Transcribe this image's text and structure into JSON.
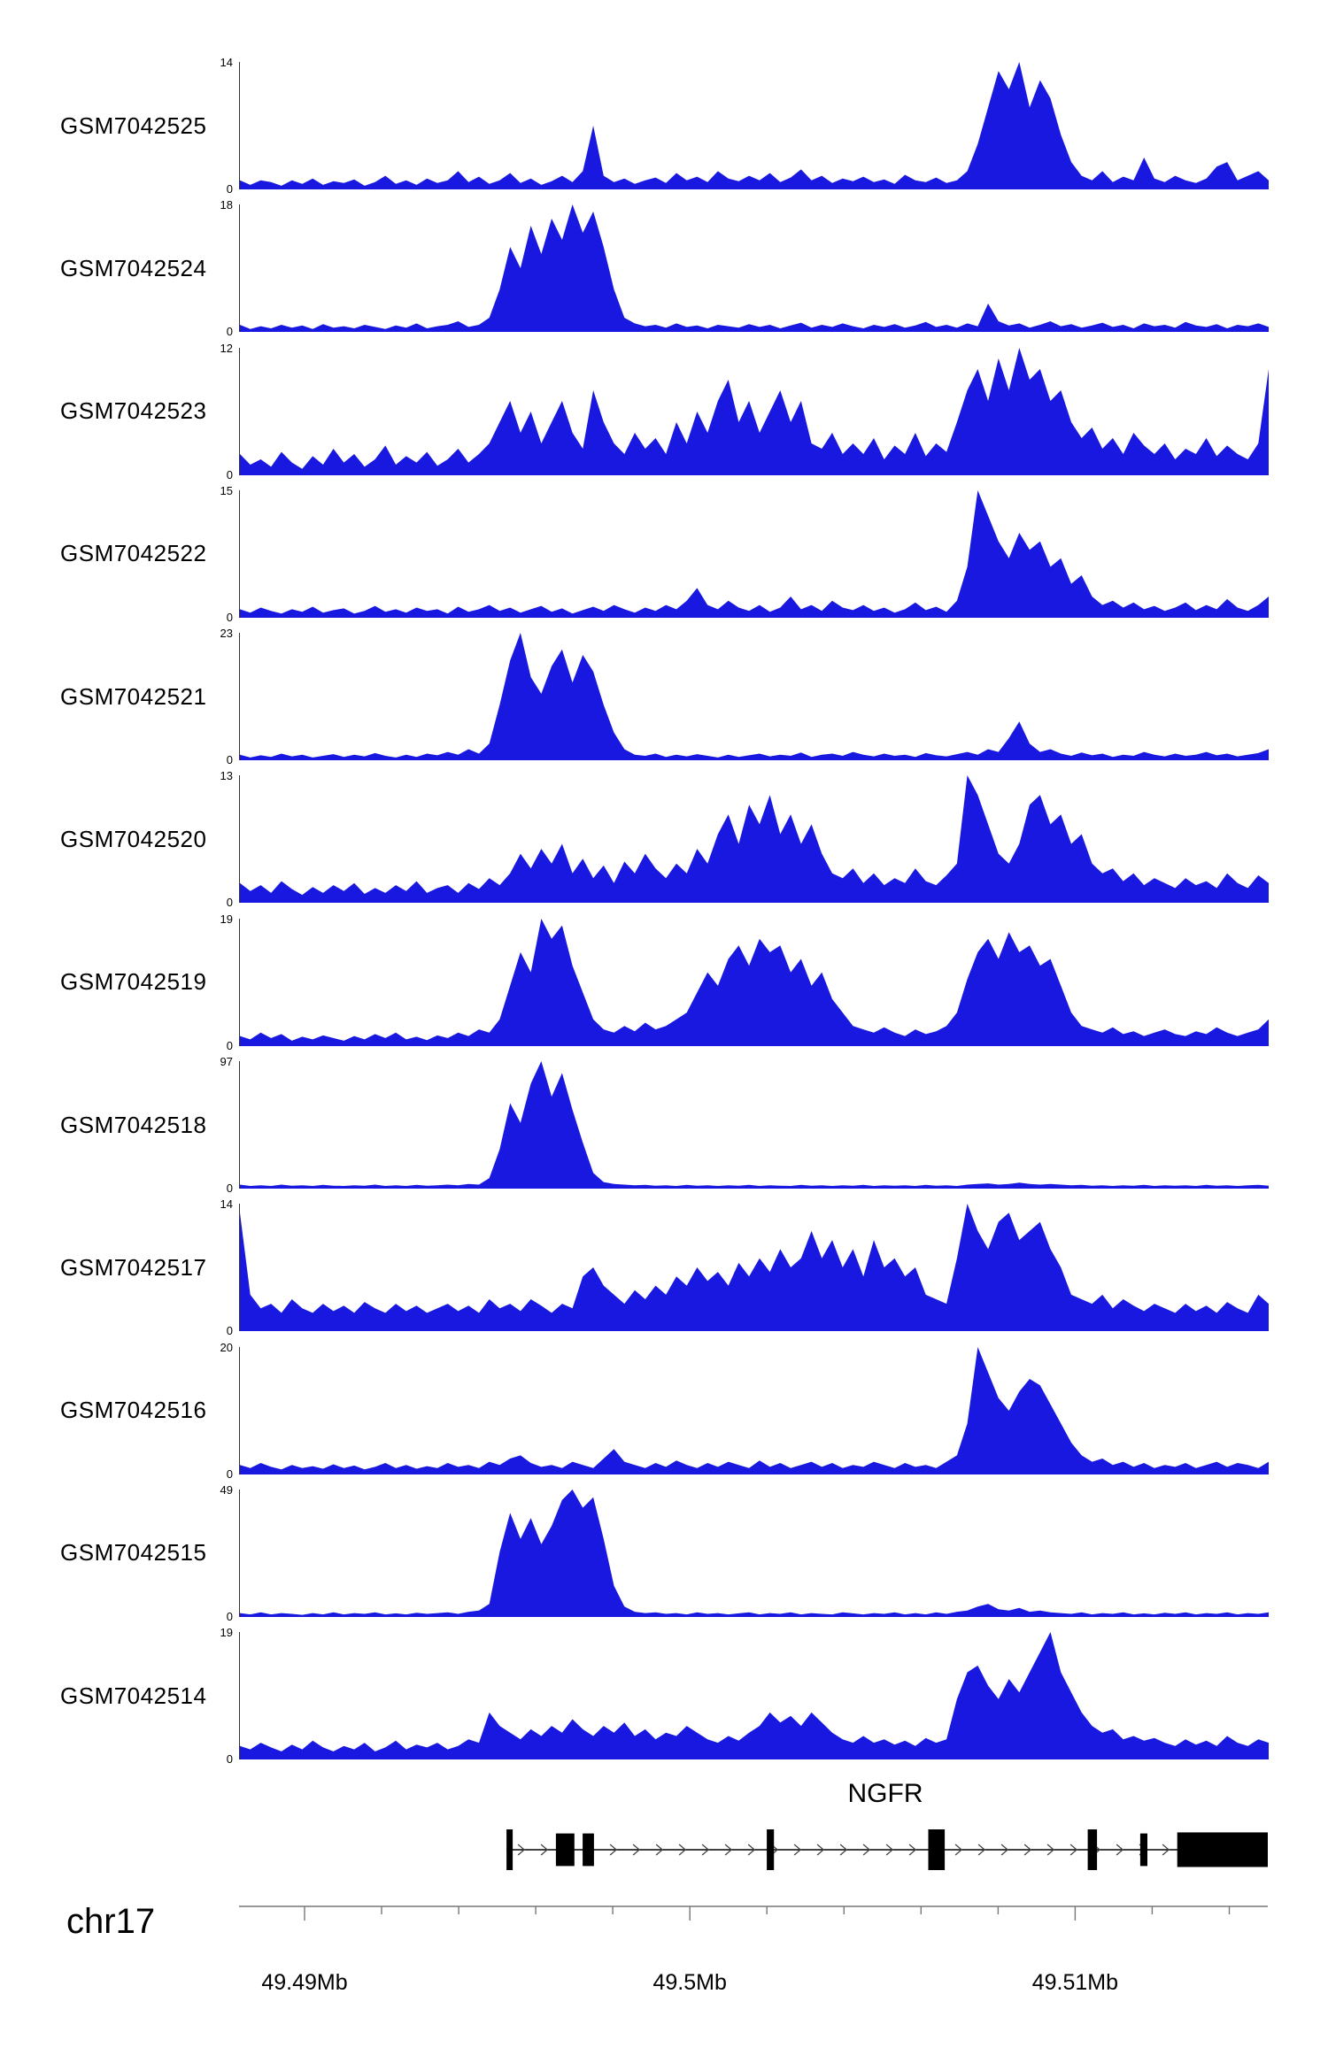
{
  "figure": {
    "background": "#ffffff"
  },
  "chart_data": {
    "type": "area",
    "title": "",
    "description": "Genome browser coverage tracks (12 samples) over the NGFR locus on chr17",
    "signal_color": "#1818e0",
    "region": {
      "chrom_label": "chr17",
      "x_start_mb": 49.4883,
      "x_end_mb": 49.515
    },
    "axis": {
      "tick_labels": [
        "49.49Mb",
        "49.5Mb",
        "49.51Mb"
      ],
      "tick_positions_mb": [
        49.49,
        49.5,
        49.51
      ],
      "minor_tick_interval_mb": 0.002,
      "minor_tick_start_mb": 49.49,
      "minor_tick_count": 13
    },
    "gene": {
      "name": "NGFR",
      "strand": "+",
      "line_start": 0.26,
      "line_end": 1.0,
      "exons": [
        {
          "x": 0.26,
          "w": 0.006,
          "h": 1.0
        },
        {
          "x": 0.308,
          "w": 0.018,
          "h": 0.8
        },
        {
          "x": 0.334,
          "w": 0.011,
          "h": 0.8
        },
        {
          "x": 0.513,
          "w": 0.007,
          "h": 1.0
        },
        {
          "x": 0.67,
          "w": 0.016,
          "h": 1.0
        },
        {
          "x": 0.825,
          "w": 0.009,
          "h": 1.0
        },
        {
          "x": 0.876,
          "w": 0.007,
          "h": 0.8
        },
        {
          "x": 0.912,
          "w": 0.088,
          "h": 0.85
        }
      ]
    },
    "tracks": [
      {
        "label": "GSM7042525",
        "ymax": 14,
        "ymin_label": "0",
        "values": [
          1,
          0.5,
          1,
          0.8,
          0.4,
          1,
          0.6,
          1.2,
          0.5,
          0.9,
          0.7,
          1.1,
          0.4,
          0.8,
          1.5,
          0.6,
          1,
          0.5,
          1.2,
          0.7,
          1,
          2,
          0.8,
          1.4,
          0.6,
          1,
          1.8,
          0.7,
          1.2,
          0.5,
          0.9,
          1.5,
          0.8,
          2,
          7,
          1.5,
          0.8,
          1.2,
          0.6,
          1,
          1.3,
          0.7,
          1.8,
          1,
          1.4,
          0.8,
          2,
          1.2,
          0.9,
          1.5,
          1,
          1.8,
          0.8,
          1.3,
          2.2,
          1,
          1.5,
          0.7,
          1.2,
          0.9,
          1.4,
          0.8,
          1.1,
          0.6,
          1.6,
          1,
          0.8,
          1.3,
          0.7,
          1,
          2,
          5,
          9,
          13,
          11,
          14,
          9,
          12,
          10,
          6,
          3,
          1.5,
          1,
          2,
          0.8,
          1.4,
          1,
          3.5,
          1.2,
          0.8,
          1.5,
          1,
          0.7,
          1.2,
          2.5,
          3,
          1,
          1.5,
          2,
          1
        ]
      },
      {
        "label": "GSM7042524",
        "ymax": 18,
        "ymin_label": "0",
        "values": [
          1,
          0.4,
          0.8,
          0.5,
          1,
          0.6,
          0.9,
          0.4,
          1.1,
          0.6,
          0.8,
          0.5,
          1,
          0.7,
          0.4,
          0.9,
          0.6,
          1.2,
          0.5,
          0.8,
          1,
          1.5,
          0.7,
          1,
          2,
          6,
          12,
          9,
          15,
          11,
          16,
          13,
          18,
          14,
          17,
          12,
          6,
          2,
          1.2,
          0.8,
          1,
          0.6,
          1.2,
          0.7,
          0.9,
          0.5,
          1,
          0.8,
          0.6,
          1.1,
          0.7,
          1,
          0.5,
          0.9,
          1.3,
          0.6,
          1,
          0.7,
          1.2,
          0.8,
          0.5,
          1,
          0.7,
          1.1,
          0.6,
          0.9,
          1.4,
          0.7,
          1,
          0.6,
          1.2,
          0.8,
          4,
          1.5,
          0.9,
          1.2,
          0.6,
          1,
          1.5,
          0.8,
          1.1,
          0.6,
          0.9,
          1.3,
          0.7,
          1,
          0.5,
          1.2,
          0.8,
          1,
          0.6,
          1.4,
          0.9,
          0.7,
          1.1,
          0.5,
          1,
          0.8,
          1.2,
          0.7
        ]
      },
      {
        "label": "GSM7042523",
        "ymax": 12,
        "ymin_label": "0",
        "values": [
          2,
          1,
          1.5,
          0.8,
          2.2,
          1.2,
          0.6,
          1.8,
          1,
          2.5,
          1.2,
          2,
          0.8,
          1.5,
          2.8,
          1,
          1.8,
          1.2,
          2.2,
          0.9,
          1.5,
          2.5,
          1.2,
          2,
          3,
          5,
          7,
          4,
          6,
          3,
          5,
          7,
          4,
          2.5,
          8,
          5,
          3,
          2,
          4,
          2.5,
          3.5,
          2,
          5,
          3,
          6,
          4,
          7,
          9,
          5,
          7,
          4,
          6,
          8,
          5,
          7,
          3,
          2.5,
          4,
          2,
          3,
          2,
          3.5,
          1.5,
          2.8,
          2,
          4,
          1.8,
          3,
          2.2,
          5,
          8,
          10,
          7,
          11,
          8,
          12,
          9,
          10,
          7,
          8,
          5,
          3.5,
          4.5,
          2.5,
          3.5,
          2,
          4,
          2.8,
          2,
          3,
          1.5,
          2.5,
          2,
          3.5,
          1.8,
          2.8,
          2,
          1.5,
          3,
          10
        ]
      },
      {
        "label": "GSM7042522",
        "ymax": 15,
        "ymin_label": "0",
        "values": [
          1,
          0.6,
          1.2,
          0.8,
          0.5,
          1,
          0.7,
          1.3,
          0.6,
          0.9,
          1.1,
          0.5,
          0.8,
          1.4,
          0.7,
          1,
          0.6,
          1.2,
          0.8,
          1,
          0.5,
          1.3,
          0.7,
          1,
          1.5,
          0.8,
          1.2,
          0.6,
          1,
          1.4,
          0.7,
          1.1,
          0.5,
          0.9,
          1.3,
          0.8,
          1.5,
          1,
          0.6,
          1.2,
          0.8,
          1.5,
          1,
          2,
          3.5,
          1.5,
          1,
          2,
          1.2,
          0.8,
          1.5,
          0.7,
          1.2,
          2.5,
          1,
          1.5,
          0.8,
          2,
          1.2,
          0.9,
          1.5,
          0.8,
          1.2,
          0.6,
          1,
          1.8,
          0.9,
          1.3,
          0.7,
          2,
          6,
          15,
          12,
          9,
          7,
          10,
          8,
          9,
          6,
          7,
          4,
          5,
          2.5,
          1.5,
          2,
          1.2,
          1.8,
          1,
          1.4,
          0.8,
          1.2,
          1.8,
          0.9,
          1.5,
          1,
          2.2,
          1.2,
          0.8,
          1.5,
          2.5
        ]
      },
      {
        "label": "GSM7042521",
        "ymax": 23,
        "ymin_label": "0",
        "values": [
          1,
          0.5,
          0.9,
          0.6,
          1.2,
          0.7,
          1,
          0.5,
          0.8,
          1.1,
          0.6,
          1,
          0.7,
          1.3,
          0.8,
          0.5,
          1,
          0.6,
          1.2,
          0.9,
          1.5,
          1,
          2,
          1.2,
          3,
          10,
          18,
          23,
          15,
          12,
          17,
          20,
          14,
          19,
          16,
          10,
          5,
          2,
          1,
          0.8,
          1.2,
          0.6,
          1,
          0.7,
          1.1,
          0.8,
          0.5,
          1,
          0.6,
          0.9,
          1.2,
          0.7,
          1,
          0.8,
          1.4,
          0.6,
          1,
          1.2,
          0.8,
          1.5,
          1,
          0.7,
          1.2,
          0.8,
          1,
          0.6,
          1.3,
          0.9,
          0.7,
          1.1,
          1.5,
          1,
          2,
          1.5,
          4,
          7,
          3,
          1.5,
          2,
          1.2,
          0.8,
          1.4,
          0.9,
          1.2,
          0.6,
          1,
          0.8,
          1.5,
          1,
          0.7,
          1.2,
          0.8,
          1,
          1.5,
          0.9,
          1.2,
          0.7,
          1,
          1.3,
          2
        ]
      },
      {
        "label": "GSM7042520",
        "ymax": 13,
        "ymin_label": "0",
        "values": [
          2,
          1.2,
          1.8,
          1,
          2.2,
          1.4,
          0.8,
          1.6,
          1,
          1.8,
          1.2,
          2,
          0.9,
          1.5,
          1,
          1.8,
          1.2,
          2.2,
          1,
          1.5,
          1.8,
          1,
          2,
          1.4,
          2.5,
          1.8,
          3,
          5,
          3.5,
          5.5,
          4,
          6,
          3,
          4.5,
          2.5,
          3.8,
          2,
          4.2,
          3,
          5,
          3.5,
          2.5,
          4,
          3,
          5.5,
          4,
          7,
          9,
          6,
          10,
          8,
          11,
          7,
          9,
          6,
          8,
          5,
          3,
          2.5,
          3.5,
          2,
          3,
          1.8,
          2.5,
          2,
          3.5,
          2.2,
          1.8,
          2.8,
          4,
          13,
          11,
          8,
          5,
          4,
          6,
          10,
          11,
          8,
          9,
          6,
          7,
          4,
          3,
          3.5,
          2.2,
          3,
          1.8,
          2.5,
          2,
          1.5,
          2.5,
          1.8,
          2.2,
          1.5,
          3,
          2,
          1.5,
          2.8,
          2
        ]
      },
      {
        "label": "GSM7042519",
        "ymax": 19,
        "ymin_label": "0",
        "values": [
          1.5,
          1,
          2,
          1.2,
          1.8,
          0.8,
          1.4,
          1,
          1.6,
          1.2,
          0.8,
          1.5,
          1,
          1.8,
          1.2,
          2,
          1,
          1.4,
          0.9,
          1.6,
          1.2,
          2,
          1.5,
          2.5,
          2,
          4,
          9,
          14,
          11,
          19,
          16,
          18,
          12,
          8,
          4,
          2.5,
          2,
          3,
          2.2,
          3.5,
          2.5,
          3,
          4,
          5,
          8,
          11,
          9,
          13,
          15,
          12,
          16,
          14,
          15,
          11,
          13,
          9,
          11,
          7,
          5,
          3,
          2.5,
          2,
          2.8,
          2,
          1.5,
          2.5,
          1.8,
          2.2,
          3,
          5,
          10,
          14,
          16,
          13,
          17,
          14,
          15,
          12,
          13,
          9,
          5,
          3,
          2.5,
          2,
          2.8,
          1.8,
          2.2,
          1.5,
          2,
          2.5,
          1.8,
          1.5,
          2.2,
          1.8,
          2.8,
          2,
          1.5,
          2,
          2.5,
          4
        ]
      },
      {
        "label": "GSM7042518",
        "ymax": 97,
        "ymin_label": "0",
        "values": [
          3,
          2,
          2.5,
          2,
          3,
          2.2,
          2.5,
          2,
          2.8,
          2.2,
          2,
          2.5,
          2.2,
          3,
          2,
          2.5,
          2,
          2.8,
          2.2,
          2.5,
          3,
          2.5,
          3.5,
          3,
          8,
          30,
          65,
          50,
          80,
          97,
          70,
          88,
          60,
          35,
          12,
          5,
          3.5,
          3,
          2.5,
          2.8,
          2.2,
          2.5,
          2,
          2.8,
          2.2,
          2.5,
          2,
          2.5,
          2.2,
          2.8,
          2,
          2.5,
          2.2,
          2,
          2.8,
          2.2,
          2.5,
          2,
          2.5,
          2.2,
          2.8,
          2,
          2.5,
          2.2,
          2.5,
          2,
          2.8,
          2.2,
          2.5,
          2,
          3,
          3.5,
          4,
          3,
          3.5,
          4.5,
          3.5,
          3,
          3.5,
          3,
          2.5,
          2.8,
          2.2,
          2.5,
          2,
          2.5,
          2.2,
          2.8,
          2,
          2.5,
          2.2,
          2.5,
          2,
          2.8,
          2.2,
          2.5,
          2,
          2.5,
          2.8,
          2.2
        ]
      },
      {
        "label": "GSM7042517",
        "ymax": 14,
        "ymin_label": "0",
        "values": [
          13,
          4,
          2.5,
          3,
          2,
          3.5,
          2.5,
          2,
          3,
          2.2,
          2.8,
          2,
          3.2,
          2.5,
          2,
          3,
          2.2,
          2.8,
          2,
          2.5,
          3,
          2.2,
          2.8,
          2,
          3.5,
          2.5,
          3,
          2.2,
          3.5,
          2.8,
          2,
          3,
          2.5,
          6,
          7,
          5,
          4,
          3,
          4.5,
          3.5,
          5,
          4,
          6,
          5,
          7,
          5.5,
          6.5,
          5,
          7.5,
          6,
          8,
          6.5,
          9,
          7,
          8,
          11,
          8,
          10,
          7,
          9,
          6,
          10,
          7,
          8,
          6,
          7,
          4,
          3.5,
          3,
          8,
          14,
          11,
          9,
          12,
          13,
          10,
          11,
          12,
          9,
          7,
          4,
          3.5,
          3,
          4,
          2.5,
          3.5,
          2.8,
          2.2,
          3,
          2.5,
          2,
          3,
          2.2,
          2.8,
          2,
          3.2,
          2.5,
          2,
          4,
          3
        ]
      },
      {
        "label": "GSM7042516",
        "ymax": 20,
        "ymin_label": "0",
        "values": [
          1.5,
          1,
          1.8,
          1.2,
          0.8,
          1.5,
          1,
          1.3,
          0.9,
          1.6,
          1,
          1.4,
          0.8,
          1.2,
          1.8,
          1,
          1.5,
          0.9,
          1.3,
          1,
          1.8,
          1.2,
          1.5,
          1,
          2,
          1.5,
          2.5,
          3,
          1.8,
          1.2,
          1.5,
          1,
          2,
          1.5,
          1,
          2.5,
          4,
          2,
          1.5,
          1,
          1.8,
          1.2,
          2.2,
          1.5,
          1,
          1.8,
          1.2,
          2,
          1.5,
          1,
          2.2,
          1.2,
          1.8,
          1,
          1.5,
          2,
          1.2,
          1.8,
          1,
          1.5,
          1.2,
          2,
          1.5,
          1,
          1.8,
          1.2,
          1.5,
          1,
          2,
          3,
          8,
          20,
          16,
          12,
          10,
          13,
          15,
          14,
          11,
          8,
          5,
          3,
          2,
          2.5,
          1.5,
          2,
          1.2,
          1.8,
          1,
          1.5,
          1.2,
          1.8,
          1,
          1.5,
          2,
          1.2,
          1.8,
          1.5,
          1,
          2
        ]
      },
      {
        "label": "GSM7042515",
        "ymax": 49,
        "ymin_label": "0",
        "values": [
          1.5,
          1,
          1.8,
          1,
          1.5,
          1.2,
          0.8,
          1.5,
          1,
          1.8,
          1,
          1.5,
          1.2,
          1.8,
          1,
          1.4,
          1,
          1.6,
          1.2,
          1.5,
          1.8,
          1.2,
          2,
          2.5,
          5,
          25,
          40,
          30,
          38,
          28,
          35,
          45,
          49,
          42,
          46,
          30,
          12,
          4,
          2,
          1.5,
          1.8,
          1.2,
          1.5,
          1,
          1.8,
          1.2,
          1.5,
          1,
          1.4,
          1.8,
          1,
          1.5,
          1.2,
          1.8,
          1,
          1.5,
          1.2,
          1,
          1.8,
          1.4,
          1,
          1.5,
          1.2,
          1.8,
          1,
          1.5,
          1,
          1.8,
          1.2,
          2,
          2.5,
          4,
          5,
          3,
          2.5,
          3.5,
          2,
          2.5,
          1.8,
          1.5,
          1.2,
          1.8,
          1,
          1.5,
          1.2,
          1.8,
          1,
          1.4,
          1,
          1.6,
          1.2,
          1.8,
          1,
          1.5,
          1.2,
          1.8,
          1,
          1.5,
          1.2,
          1.8
        ]
      },
      {
        "label": "GSM7042514",
        "ymax": 19,
        "ymin_label": "0",
        "values": [
          2,
          1.5,
          2.5,
          1.8,
          1.2,
          2.2,
          1.5,
          2.8,
          1.8,
          1.2,
          2,
          1.5,
          2.5,
          1.2,
          1.8,
          2.8,
          1.5,
          2.2,
          1.8,
          2.5,
          1.5,
          2,
          3,
          2.5,
          7,
          5,
          4,
          3,
          4.5,
          3.5,
          5,
          4,
          6,
          4.5,
          3.5,
          5,
          4,
          5.5,
          3.5,
          4.5,
          3,
          4,
          3.5,
          5,
          4,
          3,
          2.5,
          3.5,
          2.8,
          4,
          5,
          7,
          5.5,
          6.5,
          5,
          7,
          5.5,
          4,
          3,
          2.5,
          3.5,
          2.5,
          3,
          2.2,
          2.8,
          2,
          3.2,
          2.5,
          3,
          9,
          13,
          14,
          11,
          9,
          12,
          10,
          13,
          16,
          19,
          13,
          10,
          7,
          5,
          4,
          4.5,
          3,
          3.5,
          2.8,
          3.2,
          2.5,
          2,
          3,
          2.2,
          2.8,
          2,
          3.5,
          2.5,
          2,
          3,
          2.5
        ]
      }
    ]
  }
}
